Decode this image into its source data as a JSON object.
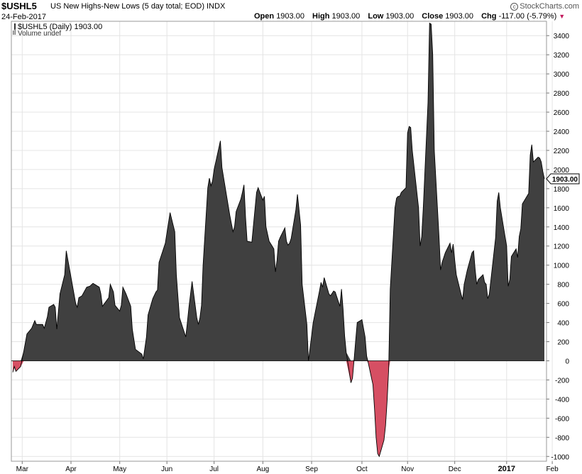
{
  "header": {
    "symbol": "$USHL5",
    "description": "US New Highs-New Lows (5 day total; EOD)",
    "exchange": "INDX",
    "date": "24-Feb-2017",
    "brand": "StockCharts.com",
    "ohlc": {
      "open_label": "Open",
      "open_value": "1903.00",
      "high_label": "High",
      "high_value": "1903.00",
      "low_label": "Low",
      "low_value": "1903.00",
      "close_label": "Close",
      "close_value": "1903.00",
      "chg_label": "Chg",
      "chg_value": "-117.00 (-5.79%)"
    },
    "arrow_color": "#c2185b"
  },
  "legend": {
    "series_label": "$USHL5 (Daily) 1903.00",
    "volume_label": "Volume undef"
  },
  "last_value_tag": "1903.00",
  "colors": {
    "positive_fill": "#404040",
    "negative_fill": "#d64f63",
    "grid": "#e4e4e4"
  },
  "chart_data": {
    "type": "area",
    "ylim": [
      -1050,
      3550
    ],
    "y_ticks": [
      -1000,
      -800,
      -600,
      -400,
      -200,
      0,
      200,
      400,
      600,
      800,
      1000,
      1200,
      1400,
      1600,
      1800,
      2000,
      2200,
      2400,
      2600,
      2800,
      3000,
      3200,
      3400
    ],
    "x_ticks": [
      {
        "label": "Mar",
        "x": "2016-03-01"
      },
      {
        "label": "Apr",
        "x": "2016-04-01"
      },
      {
        "label": "May",
        "x": "2016-05-02"
      },
      {
        "label": "Jun",
        "x": "2016-06-01"
      },
      {
        "label": "Jul",
        "x": "2016-07-01"
      },
      {
        "label": "Aug",
        "x": "2016-08-01"
      },
      {
        "label": "Sep",
        "x": "2016-09-01"
      },
      {
        "label": "Oct",
        "x": "2016-10-03"
      },
      {
        "label": "Nov",
        "x": "2016-11-01"
      },
      {
        "label": "Dec",
        "x": "2016-12-01"
      },
      {
        "label": "2017",
        "x": "2017-01-03"
      },
      {
        "label": "Feb",
        "x": "2017-02-01"
      }
    ],
    "year_label": "2017",
    "grid": true,
    "series": [
      {
        "points": [
          [
            "2016-02-24",
            -120
          ],
          [
            "2016-02-25",
            -60
          ],
          [
            "2016-02-26",
            -110
          ],
          [
            "2016-02-29",
            -60
          ],
          [
            "2016-03-02",
            100
          ],
          [
            "2016-03-04",
            280
          ],
          [
            "2016-03-07",
            340
          ],
          [
            "2016-03-09",
            420
          ],
          [
            "2016-03-10",
            380
          ],
          [
            "2016-03-14",
            380
          ],
          [
            "2016-03-15",
            340
          ],
          [
            "2016-03-17",
            460
          ],
          [
            "2016-03-18",
            560
          ],
          [
            "2016-03-21",
            590
          ],
          [
            "2016-03-22",
            560
          ],
          [
            "2016-03-23",
            330
          ],
          [
            "2016-03-25",
            700
          ],
          [
            "2016-03-28",
            900
          ],
          [
            "2016-03-29",
            1150
          ],
          [
            "2016-04-04",
            600
          ],
          [
            "2016-04-05",
            560
          ],
          [
            "2016-04-06",
            660
          ],
          [
            "2016-04-08",
            680
          ],
          [
            "2016-04-11",
            770
          ],
          [
            "2016-04-13",
            780
          ],
          [
            "2016-04-15",
            810
          ],
          [
            "2016-04-19",
            770
          ],
          [
            "2016-04-20",
            700
          ],
          [
            "2016-04-21",
            570
          ],
          [
            "2016-04-25",
            660
          ],
          [
            "2016-04-26",
            800
          ],
          [
            "2016-04-28",
            720
          ],
          [
            "2016-04-29",
            580
          ],
          [
            "2016-05-02",
            520
          ],
          [
            "2016-05-03",
            580
          ],
          [
            "2016-05-04",
            770
          ],
          [
            "2016-05-06",
            700
          ],
          [
            "2016-05-09",
            570
          ],
          [
            "2016-05-10",
            330
          ],
          [
            "2016-05-12",
            120
          ],
          [
            "2016-05-16",
            70
          ],
          [
            "2016-05-17",
            20
          ],
          [
            "2016-05-19",
            250
          ],
          [
            "2016-05-20",
            480
          ],
          [
            "2016-05-23",
            650
          ],
          [
            "2016-05-25",
            720
          ],
          [
            "2016-05-26",
            740
          ],
          [
            "2016-05-27",
            1030
          ],
          [
            "2016-05-31",
            1230
          ],
          [
            "2016-06-03",
            1550
          ],
          [
            "2016-06-06",
            1350
          ],
          [
            "2016-06-07",
            900
          ],
          [
            "2016-06-09",
            450
          ],
          [
            "2016-06-13",
            250
          ],
          [
            "2016-06-14",
            400
          ],
          [
            "2016-06-15",
            560
          ],
          [
            "2016-06-17",
            830
          ],
          [
            "2016-06-20",
            450
          ],
          [
            "2016-06-21",
            380
          ],
          [
            "2016-06-22",
            450
          ],
          [
            "2016-06-23",
            580
          ],
          [
            "2016-06-24",
            1000
          ],
          [
            "2016-06-27",
            1810
          ],
          [
            "2016-06-28",
            1910
          ],
          [
            "2016-06-29",
            1830
          ],
          [
            "2016-06-30",
            1880
          ],
          [
            "2016-07-01",
            2000
          ],
          [
            "2016-07-05",
            2300
          ],
          [
            "2016-07-06",
            2020
          ],
          [
            "2016-07-11",
            1520
          ],
          [
            "2016-07-13",
            1350
          ],
          [
            "2016-07-14",
            1400
          ],
          [
            "2016-07-15",
            1560
          ],
          [
            "2016-07-18",
            1690
          ],
          [
            "2016-07-19",
            1760
          ],
          [
            "2016-07-20",
            1840
          ],
          [
            "2016-07-21",
            1500
          ],
          [
            "2016-07-22",
            1250
          ],
          [
            "2016-07-25",
            1240
          ],
          [
            "2016-07-28",
            1760
          ],
          [
            "2016-07-29",
            1810
          ],
          [
            "2016-08-01",
            1680
          ],
          [
            "2016-08-02",
            1720
          ],
          [
            "2016-08-03",
            1400
          ],
          [
            "2016-08-05",
            1250
          ],
          [
            "2016-08-08",
            1170
          ],
          [
            "2016-08-09",
            930
          ],
          [
            "2016-08-10",
            1050
          ],
          [
            "2016-08-11",
            1250
          ],
          [
            "2016-08-12",
            1290
          ],
          [
            "2016-08-15",
            1390
          ],
          [
            "2016-08-16",
            1250
          ],
          [
            "2016-08-17",
            1210
          ],
          [
            "2016-08-18",
            1230
          ],
          [
            "2016-08-19",
            1280
          ],
          [
            "2016-08-22",
            1580
          ],
          [
            "2016-08-23",
            1740
          ],
          [
            "2016-08-25",
            1420
          ],
          [
            "2016-08-26",
            800
          ],
          [
            "2016-08-29",
            380
          ],
          [
            "2016-08-30",
            0
          ],
          [
            "2016-08-31",
            130
          ],
          [
            "2016-09-02",
            400
          ],
          [
            "2016-09-06",
            730
          ],
          [
            "2016-09-07",
            820
          ],
          [
            "2016-09-08",
            770
          ],
          [
            "2016-09-09",
            870
          ],
          [
            "2016-09-12",
            700
          ],
          [
            "2016-09-13",
            680
          ],
          [
            "2016-09-15",
            730
          ],
          [
            "2016-09-16",
            720
          ],
          [
            "2016-09-19",
            570
          ],
          [
            "2016-09-20",
            750
          ],
          [
            "2016-09-21",
            540
          ],
          [
            "2016-09-22",
            260
          ],
          [
            "2016-09-23",
            90
          ],
          [
            "2016-09-26",
            -230
          ],
          [
            "2016-09-27",
            -180
          ],
          [
            "2016-09-28",
            10
          ],
          [
            "2016-09-29",
            210
          ],
          [
            "2016-09-30",
            400
          ],
          [
            "2016-10-03",
            430
          ],
          [
            "2016-10-05",
            250
          ],
          [
            "2016-10-06",
            50
          ],
          [
            "2016-10-07",
            -20
          ],
          [
            "2016-10-10",
            -250
          ],
          [
            "2016-10-11",
            -500
          ],
          [
            "2016-10-12",
            -800
          ],
          [
            "2016-10-13",
            -970
          ],
          [
            "2016-10-14",
            -1000
          ],
          [
            "2016-10-17",
            -830
          ],
          [
            "2016-10-18",
            -680
          ],
          [
            "2016-10-19",
            -420
          ],
          [
            "2016-10-20",
            -90
          ],
          [
            "2016-10-21",
            750
          ],
          [
            "2016-10-24",
            1600
          ],
          [
            "2016-10-25",
            1700
          ],
          [
            "2016-10-26",
            1720
          ],
          [
            "2016-10-27",
            1720
          ],
          [
            "2016-10-28",
            1760
          ],
          [
            "2016-10-31",
            1810
          ],
          [
            "2016-11-01",
            2380
          ],
          [
            "2016-11-02",
            2450
          ],
          [
            "2016-11-03",
            2440
          ],
          [
            "2016-11-04",
            2200
          ],
          [
            "2016-11-08",
            1600
          ],
          [
            "2016-11-09",
            1200
          ],
          [
            "2016-11-10",
            1300
          ],
          [
            "2016-11-11",
            1600
          ],
          [
            "2016-11-14",
            2700
          ],
          [
            "2016-11-15",
            3530
          ],
          [
            "2016-11-16",
            3520
          ],
          [
            "2016-11-17",
            3200
          ],
          [
            "2016-11-18",
            2200
          ],
          [
            "2016-11-21",
            1300
          ],
          [
            "2016-11-22",
            950
          ],
          [
            "2016-11-23",
            1030
          ],
          [
            "2016-11-25",
            1130
          ],
          [
            "2016-11-28",
            1230
          ],
          [
            "2016-11-29",
            1130
          ],
          [
            "2016-11-30",
            1220
          ],
          [
            "2016-12-01",
            1050
          ],
          [
            "2016-12-02",
            900
          ],
          [
            "2016-12-05",
            700
          ],
          [
            "2016-12-06",
            640
          ],
          [
            "2016-12-07",
            800
          ],
          [
            "2016-12-09",
            950
          ],
          [
            "2016-12-12",
            1130
          ],
          [
            "2016-12-13",
            1150
          ],
          [
            "2016-12-14",
            950
          ],
          [
            "2016-12-15",
            800
          ],
          [
            "2016-12-16",
            850
          ],
          [
            "2016-12-19",
            900
          ],
          [
            "2016-12-20",
            820
          ],
          [
            "2016-12-21",
            800
          ],
          [
            "2016-12-22",
            650
          ],
          [
            "2016-12-23",
            700
          ],
          [
            "2016-12-27",
            1290
          ],
          [
            "2016-12-28",
            1670
          ],
          [
            "2016-12-29",
            1760
          ],
          [
            "2016-12-30",
            1600
          ],
          [
            "2017-01-03",
            1200
          ],
          [
            "2017-01-04",
            780
          ],
          [
            "2017-01-05",
            850
          ],
          [
            "2017-01-06",
            1090
          ],
          [
            "2017-01-09",
            1170
          ],
          [
            "2017-01-10",
            1080
          ],
          [
            "2017-01-11",
            1300
          ],
          [
            "2017-01-12",
            1380
          ],
          [
            "2017-01-13",
            1640
          ],
          [
            "2017-01-17",
            1750
          ],
          [
            "2017-01-18",
            2150
          ],
          [
            "2017-01-19",
            2260
          ],
          [
            "2017-01-20",
            2080
          ],
          [
            "2017-01-23",
            2130
          ],
          [
            "2017-01-24",
            2120
          ],
          [
            "2017-01-25",
            2080
          ],
          [
            "2017-01-26",
            1980
          ],
          [
            "2017-01-27",
            1903
          ]
        ]
      }
    ]
  }
}
